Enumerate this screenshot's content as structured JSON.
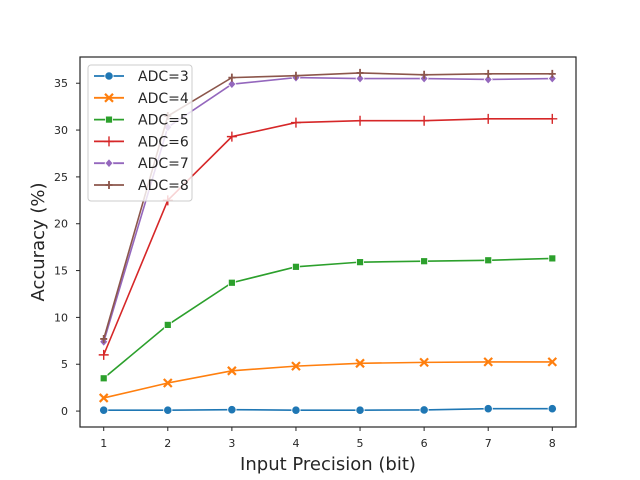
{
  "chart_data": {
    "type": "line",
    "title": "",
    "xlabel": "Input Precision (bit)",
    "ylabel": "Accuracy (%)",
    "x": [
      1,
      2,
      3,
      4,
      5,
      6,
      7,
      8
    ],
    "xlim": [
      0.63,
      8.37
    ],
    "ylim": [
      -1.7,
      37.8
    ],
    "xticks": [
      "1",
      "2",
      "3",
      "4",
      "5",
      "6",
      "7",
      "8"
    ],
    "yticks": [
      0,
      5,
      10,
      15,
      20,
      25,
      30,
      35
    ],
    "grid": false,
    "legend_position": "upper-left",
    "series": [
      {
        "name": "ADC=3",
        "color": "#1f77b4",
        "marker": "circle",
        "values": [
          0.1,
          0.1,
          0.15,
          0.1,
          0.1,
          0.12,
          0.25,
          0.25
        ]
      },
      {
        "name": "ADC=4",
        "color": "#ff7f0e",
        "marker": "x",
        "values": [
          1.4,
          3.0,
          4.3,
          4.8,
          5.1,
          5.2,
          5.25,
          5.25
        ]
      },
      {
        "name": "ADC=5",
        "color": "#2ca02c",
        "marker": "square",
        "values": [
          3.5,
          9.2,
          13.7,
          15.4,
          15.9,
          16.0,
          16.1,
          16.3
        ]
      },
      {
        "name": "ADC=6",
        "color": "#d62728",
        "marker": "plus",
        "values": [
          6.0,
          22.5,
          29.3,
          30.8,
          31.0,
          31.0,
          31.2,
          31.2
        ]
      },
      {
        "name": "ADC=7",
        "color": "#9467bd",
        "marker": "diamond",
        "values": [
          7.4,
          30.3,
          34.9,
          35.6,
          35.5,
          35.5,
          35.4,
          35.5
        ]
      },
      {
        "name": "ADC=8",
        "color": "#8c564b",
        "marker": "thin-plus",
        "values": [
          7.7,
          31.5,
          35.6,
          35.8,
          36.1,
          35.9,
          36.0,
          36.0
        ]
      }
    ]
  }
}
